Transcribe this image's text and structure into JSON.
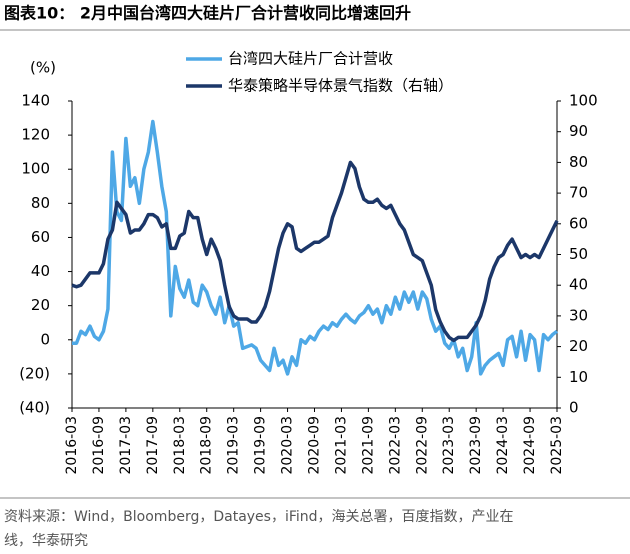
{
  "chart_data": {
    "type": "line",
    "title": "图表10：  2月中国台湾四大硅片厂合计营收同比增速回升",
    "y_label": "(%)",
    "source": [
      "资料来源：Wind，Bloomberg，Datayes，iFind，海关总署，百度指数，产业在",
      "线，华泰研究"
    ],
    "categories": [
      "2016-03",
      null,
      null,
      null,
      null,
      null,
      "2016-09",
      null,
      null,
      null,
      null,
      null,
      "2017-03",
      null,
      null,
      null,
      null,
      null,
      "2017-09",
      null,
      null,
      null,
      null,
      null,
      "2018-03",
      null,
      null,
      null,
      null,
      null,
      "2018-09",
      null,
      null,
      null,
      null,
      null,
      "2019-03",
      null,
      null,
      null,
      null,
      null,
      "2019-09",
      null,
      null,
      null,
      null,
      null,
      "2020-03",
      null,
      null,
      null,
      null,
      null,
      "2020-09",
      null,
      null,
      null,
      null,
      null,
      "2021-03",
      null,
      null,
      null,
      null,
      null,
      "2021-09",
      null,
      null,
      null,
      null,
      null,
      "2022-03",
      null,
      null,
      null,
      null,
      null,
      "2022-09",
      null,
      null,
      null,
      null,
      null,
      "2023-03",
      null,
      null,
      null,
      null,
      null,
      "2023-09",
      null,
      null,
      null,
      null,
      null,
      "2024-03",
      null,
      null,
      null,
      null,
      null,
      "2024-09",
      null,
      null,
      null,
      null,
      null,
      "2025-03"
    ],
    "series": [
      {
        "name": "台湾四大硅片厂合计营收",
        "color": "#4ea8e6",
        "axis": "y",
        "values": [
          -2,
          -2,
          5,
          3,
          8,
          2,
          0,
          5,
          18,
          110,
          75,
          70,
          118,
          90,
          95,
          80,
          100,
          110,
          128,
          110,
          90,
          75,
          14,
          43,
          30,
          25,
          35,
          22,
          20,
          32,
          28,
          20,
          15,
          25,
          10,
          20,
          8,
          10,
          -5,
          -4,
          -3,
          -5,
          -12,
          -15,
          -18,
          -5,
          -15,
          -12,
          -20,
          -10,
          -15,
          0,
          -2,
          2,
          0,
          5,
          8,
          6,
          10,
          8,
          12,
          15,
          12,
          10,
          14,
          16,
          20,
          15,
          18,
          10,
          20,
          15,
          25,
          18,
          28,
          22,
          28,
          18,
          28,
          24,
          12,
          5,
          8,
          -2,
          -5,
          0,
          -10,
          -5,
          -18,
          -10,
          10,
          -20,
          -15,
          -12,
          -10,
          -8,
          -15,
          0,
          2,
          -10,
          5,
          -12,
          3,
          0,
          -18,
          3,
          0,
          3,
          5
        ]
      },
      {
        "name": "华泰策略半导体景气指数（右轴）",
        "color": "#1c3769",
        "axis": "y2",
        "values": [
          40,
          39.5,
          40,
          42,
          44,
          44,
          44,
          47,
          55,
          58,
          67,
          65,
          63,
          57,
          58,
          58,
          60,
          63,
          63,
          62,
          59,
          60,
          52,
          52,
          56,
          57,
          64,
          62,
          62,
          55,
          50,
          55,
          52,
          48,
          40,
          33,
          30,
          29,
          29,
          29,
          28,
          28,
          30,
          33,
          38,
          45,
          52,
          57,
          60,
          59,
          52,
          51,
          52,
          53,
          54,
          54,
          55,
          56,
          62,
          66,
          70,
          75,
          80,
          78,
          72,
          68,
          67,
          67,
          68,
          66,
          65,
          66,
          63,
          60,
          58,
          54,
          50,
          49,
          48,
          44,
          40,
          32,
          28,
          25,
          23,
          22,
          23,
          23,
          23,
          25,
          27,
          30,
          35,
          42,
          46,
          49,
          50,
          53,
          55,
          52,
          49,
          50,
          49,
          50,
          49,
          52,
          55,
          58,
          61
        ]
      }
    ],
    "ylim": [
      -40,
      140
    ],
    "yticks": [
      {
        "value": -40,
        "label": "(40)"
      },
      {
        "value": -20,
        "label": "(20)"
      },
      0,
      20,
      40,
      60,
      80,
      100,
      120,
      140
    ],
    "y2lim": [
      0,
      100
    ],
    "y2ticks": [
      0,
      10,
      20,
      30,
      40,
      50,
      60,
      70,
      80,
      90,
      100
    ],
    "legend": "top"
  }
}
